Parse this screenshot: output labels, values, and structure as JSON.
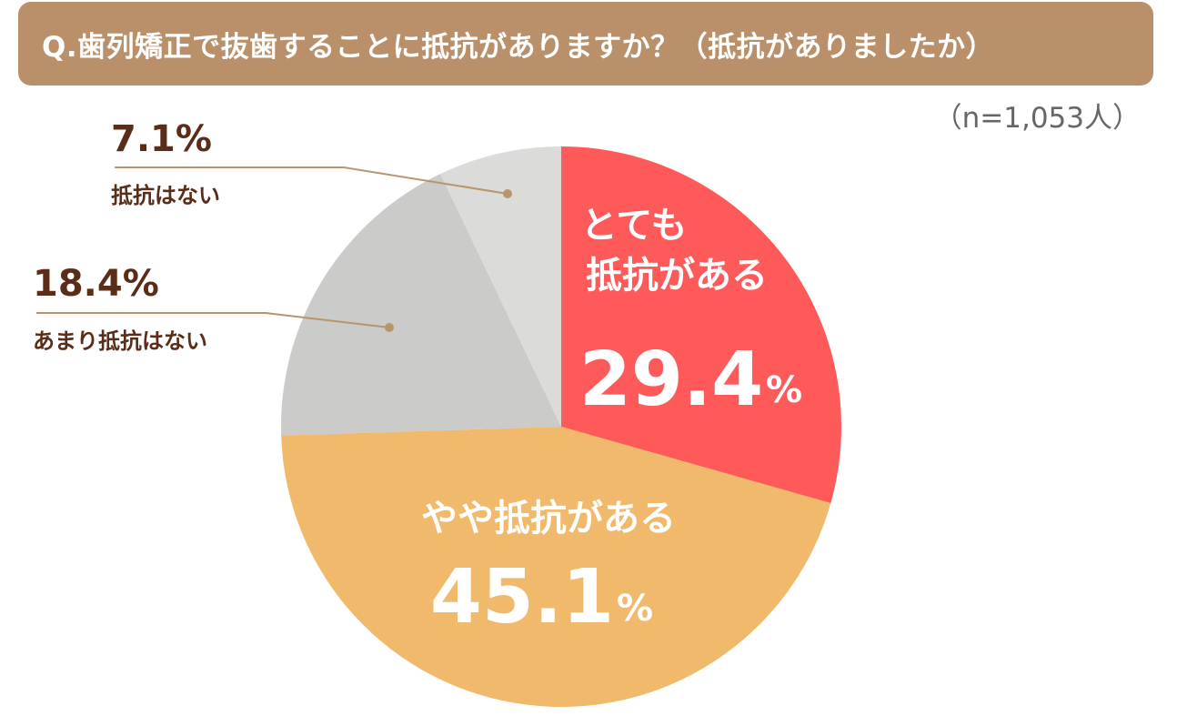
{
  "title": "Q.歯列矯正で抜歯することに抵抗がありますか？（抵抗がありましたか）",
  "sample_size": "（n=1,053人）",
  "chart_data": {
    "type": "pie",
    "start_angle": "top",
    "direction": "clockwise",
    "slices": [
      {
        "label": "とても抵抗がある",
        "label_lines": [
          "とても",
          "抵抗がある"
        ],
        "value": 29.4,
        "value_text": "29.4",
        "unit": "%",
        "color": "#ff5a5a",
        "label_placement": "inside"
      },
      {
        "label": "やや抵抗がある",
        "label_lines": [
          "やや抵抗がある"
        ],
        "value": 45.1,
        "value_text": "45.1",
        "unit": "%",
        "color": "#f1b96b",
        "label_placement": "inside"
      },
      {
        "label": "あまり抵抗はない",
        "label_lines": [
          "あまり抵抗はない"
        ],
        "value": 18.4,
        "value_text": "18.4",
        "unit": "%",
        "color": "#cbcbc9",
        "label_placement": "outside"
      },
      {
        "label": "抵抗はない",
        "label_lines": [
          "抵抗はない"
        ],
        "value": 7.1,
        "value_text": "7.1",
        "unit": "%",
        "color": "#dbdbda",
        "label_placement": "outside"
      }
    ]
  },
  "colors": {
    "title_bar": "#b99069",
    "leader_line": "#b8956a",
    "outside_text": "#5a2d18",
    "inside_text": "#ffffff"
  }
}
